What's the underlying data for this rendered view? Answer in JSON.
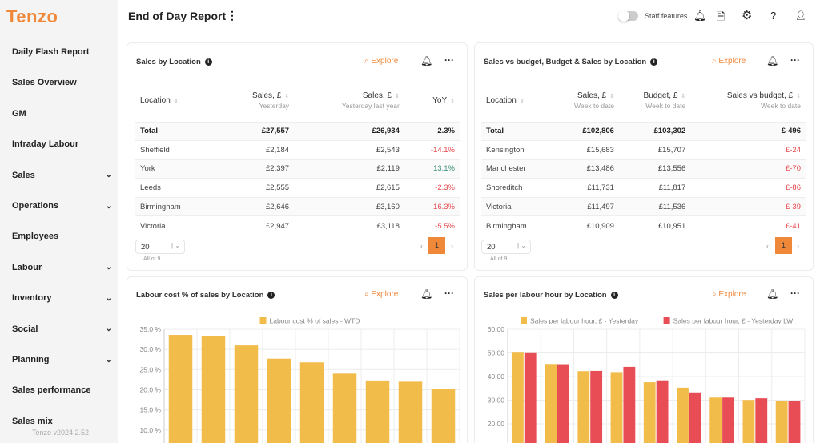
{
  "app": {
    "logo": "Tenzo",
    "version": "Tenzo v2024.2.52"
  },
  "sidebar": {
    "items": [
      {
        "label": "Daily Flash Report",
        "expandable": false
      },
      {
        "label": "Sales Overview",
        "expandable": false
      },
      {
        "label": "GM",
        "expandable": false
      },
      {
        "label": "Intraday Labour",
        "expandable": false
      },
      {
        "label": "Sales",
        "expandable": true
      },
      {
        "label": "Operations",
        "expandable": true
      },
      {
        "label": "Employees",
        "expandable": false
      },
      {
        "label": "Labour",
        "expandable": true
      },
      {
        "label": "Inventory",
        "expandable": true
      },
      {
        "label": "Social",
        "expandable": true
      },
      {
        "label": "Planning",
        "expandable": true
      },
      {
        "label": "Sales performance",
        "expandable": false
      },
      {
        "label": "Sales mix",
        "expandable": false
      }
    ]
  },
  "header": {
    "title": "End of Day Report",
    "staff_features": "Staff features",
    "staff_features_on": false,
    "icons": [
      "bell-icon",
      "document-icon",
      "gear-icon",
      "help-icon",
      "user-icon"
    ]
  },
  "colors": {
    "accent": "#f0883a",
    "positive": "#3b8f7a",
    "negative": "#e5484d",
    "bar_yellow": "#f2bc4b",
    "bar_red": "#e84c55"
  },
  "common": {
    "explore": "Explore",
    "page_size": "20",
    "all_of": "All of 9",
    "page": "1"
  },
  "card1": {
    "title": "Sales by Location",
    "columns": [
      {
        "label": "Location",
        "sub": ""
      },
      {
        "label": "Sales, £",
        "sub": "Yesterday"
      },
      {
        "label": "Sales, £",
        "sub": "Yesterday last year"
      },
      {
        "label": "YoY",
        "sub": ""
      }
    ],
    "rows": [
      [
        "Total",
        "£27,557",
        "£26,934",
        "2.3%"
      ],
      [
        "Sheffield",
        "£2,184",
        "£2,543",
        "-14.1%"
      ],
      [
        "York",
        "£2,397",
        "£2,119",
        "13.1%"
      ],
      [
        "Leeds",
        "£2,555",
        "£2,615",
        "-2.3%"
      ],
      [
        "Birmingham",
        "£2,646",
        "£3,160",
        "-16.3%"
      ],
      [
        "Victoria",
        "£2,947",
        "£3,118",
        "-5.5%"
      ]
    ]
  },
  "card2": {
    "title": "Sales vs budget, Budget & Sales by Location",
    "columns": [
      {
        "label": "Location",
        "sub": ""
      },
      {
        "label": "Sales, £",
        "sub": "Week to date"
      },
      {
        "label": "Budget, £",
        "sub": "Week to date"
      },
      {
        "label": "Sales vs budget, £",
        "sub": "Week to date"
      }
    ],
    "rows": [
      [
        "Total",
        "£102,806",
        "£103,302",
        "£-496"
      ],
      [
        "Kensington",
        "£15,683",
        "£15,707",
        "£-24"
      ],
      [
        "Manchester",
        "£13,486",
        "£13,556",
        "£-70"
      ],
      [
        "Shoreditch",
        "£11,731",
        "£11,817",
        "£-86"
      ],
      [
        "Victoria",
        "£11,497",
        "£11,536",
        "£-39"
      ],
      [
        "Birmingham",
        "£10,909",
        "£10,951",
        "£-41"
      ]
    ]
  },
  "chart_data": [
    {
      "type": "bar",
      "title": "Labour cost % of sales by Location",
      "ylim": [
        0,
        35
      ],
      "yticks": [
        "35.0 %",
        "30.0 %",
        "25.0 %",
        "20.0 %",
        "15.0 %",
        "10.0 %"
      ],
      "grid": true,
      "legend": "top",
      "series": [
        {
          "name": "Labour cost % of sales - WTD",
          "color": "#f2bc4b",
          "values": [
            33.6,
            33.4,
            31.0,
            27.7,
            26.8,
            24.0,
            22.3,
            22.0,
            20.2
          ]
        }
      ]
    },
    {
      "type": "bar",
      "title": "Sales per labour hour by Location",
      "ylim": [
        0,
        60
      ],
      "yticks": [
        "60.00",
        "50.00",
        "40.00",
        "30.00",
        "20.00"
      ],
      "grid": true,
      "legend": "top",
      "series": [
        {
          "name": "Sales per labour hour, £ - Yesterday",
          "color": "#f2bc4b",
          "values": [
            50.1,
            45.0,
            42.3,
            41.9,
            37.6,
            35.3,
            31.1,
            30.1,
            29.8
          ]
        },
        {
          "name": "Sales per labour hour, £ - Yesterday LW",
          "color": "#e84c55",
          "values": [
            49.9,
            44.9,
            42.4,
            44.1,
            38.4,
            33.3,
            31.1,
            30.8,
            29.6
          ]
        }
      ]
    }
  ]
}
